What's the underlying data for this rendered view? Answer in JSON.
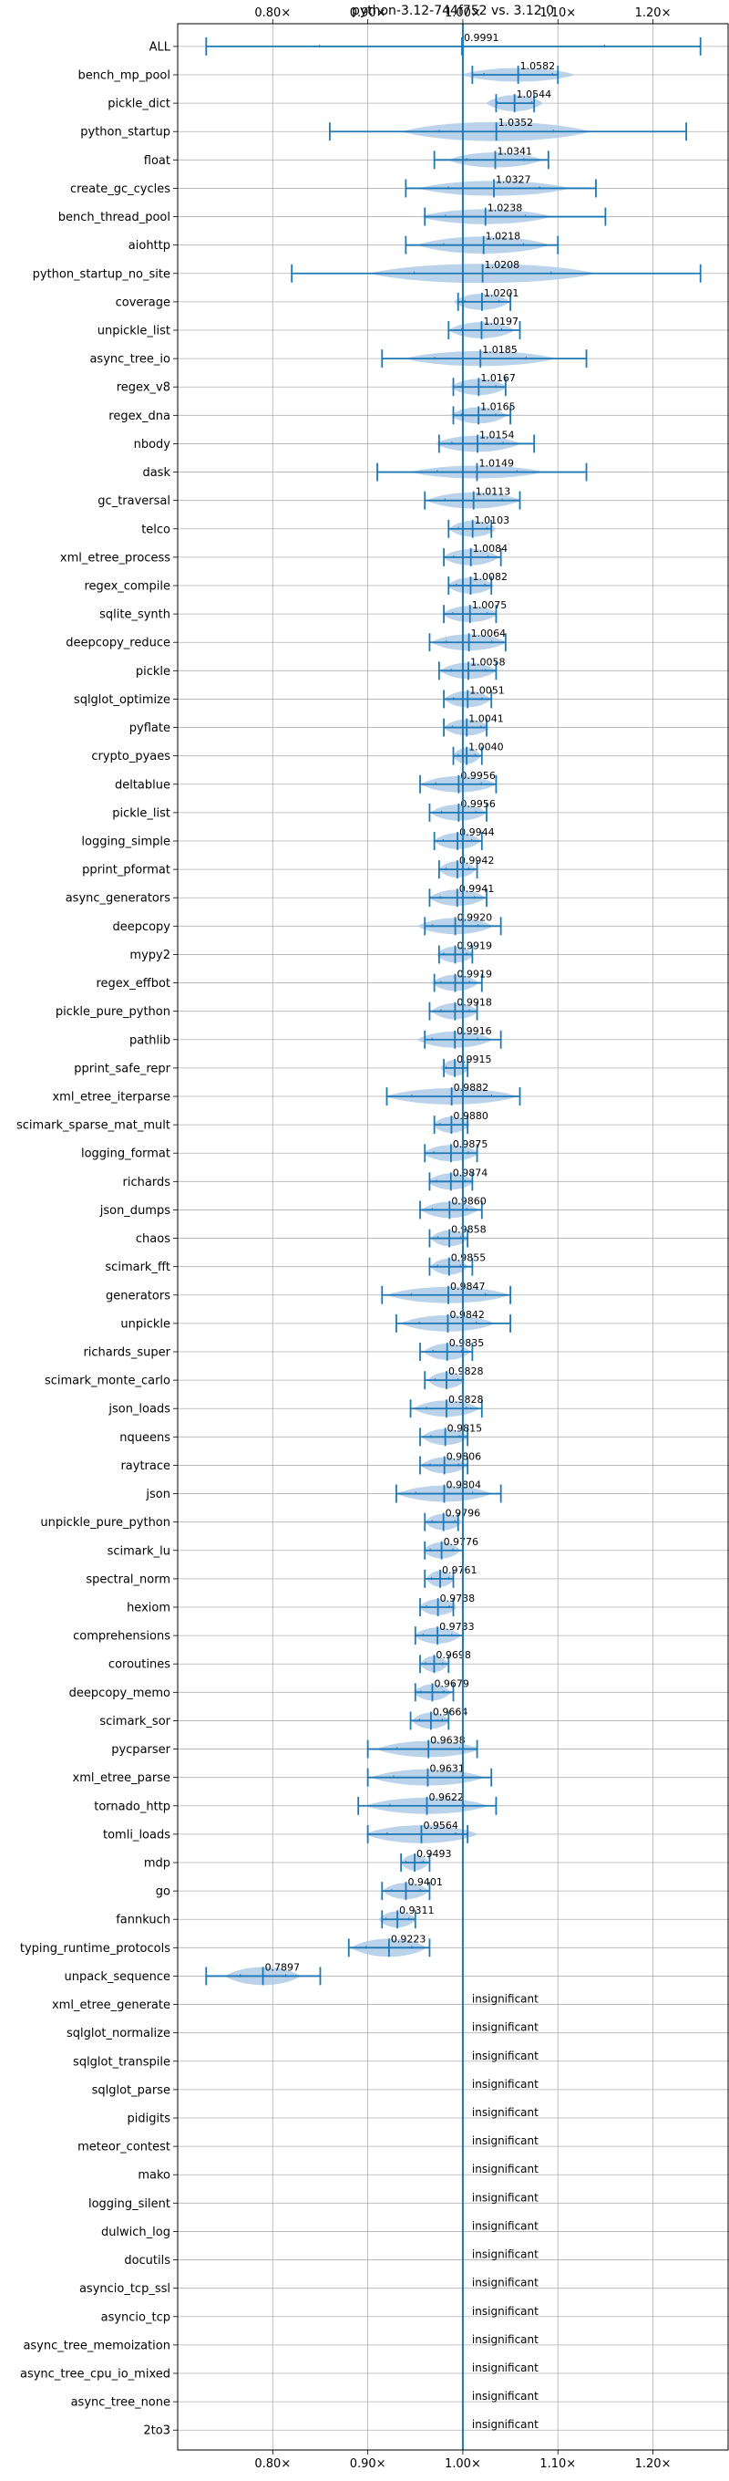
{
  "chart_data": {
    "type": "violin",
    "title": "python-3.12-744f752 vs. 3.12.0",
    "xlim": [
      0.7,
      1.28
    ],
    "xticks": [
      {
        "value": 0.8,
        "label": "0.80×"
      },
      {
        "value": 0.9,
        "label": "0.90×"
      },
      {
        "value": 1.0,
        "label": "1.00×"
      },
      {
        "value": 1.1,
        "label": "1.10×"
      },
      {
        "value": 1.2,
        "label": "1.20×"
      }
    ],
    "grid": true,
    "reference_line": 1.0,
    "colors": {
      "violin": "#aecbe6",
      "line": "#1f77b4",
      "grid": "#b0b0b0"
    },
    "insignificant_label": "insignificant",
    "benchmarks": [
      {
        "name": "ALL",
        "label": "0.9991",
        "mean": 0.9991,
        "min": 0.73,
        "max": 1.25,
        "half_width": 0.04,
        "width": 0.25
      },
      {
        "name": "bench_mp_pool",
        "label": "1.0582",
        "mean": 1.0582,
        "min": 1.01,
        "max": 1.1,
        "half_width": 0.32,
        "width": 0.06
      },
      {
        "name": "pickle_dict",
        "label": "1.0544",
        "mean": 1.0544,
        "min": 1.035,
        "max": 1.075,
        "half_width": 0.38,
        "width": 0.03
      },
      {
        "name": "python_startup",
        "label": "1.0352",
        "mean": 1.0352,
        "min": 0.86,
        "max": 1.235,
        "half_width": 0.45,
        "width": 0.1
      },
      {
        "name": "float",
        "label": "1.0341",
        "mean": 1.0341,
        "min": 0.97,
        "max": 1.09,
        "half_width": 0.35,
        "width": 0.05
      },
      {
        "name": "create_gc_cycles",
        "label": "1.0327",
        "mean": 1.0327,
        "min": 0.94,
        "max": 1.14,
        "half_width": 0.35,
        "width": 0.08
      },
      {
        "name": "bench_thread_pool",
        "label": "1.0238",
        "mean": 1.0238,
        "min": 0.96,
        "max": 1.15,
        "half_width": 0.35,
        "width": 0.07
      },
      {
        "name": "aiohttp",
        "label": "1.0218",
        "mean": 1.0218,
        "min": 0.94,
        "max": 1.1,
        "half_width": 0.4,
        "width": 0.07
      },
      {
        "name": "python_startup_no_site",
        "label": "1.0208",
        "mean": 1.0208,
        "min": 0.82,
        "max": 1.25,
        "half_width": 0.45,
        "width": 0.12
      },
      {
        "name": "coverage",
        "label": "1.0201",
        "mean": 1.0201,
        "min": 0.995,
        "max": 1.05,
        "half_width": 0.38,
        "width": 0.03
      },
      {
        "name": "unpickle_list",
        "label": "1.0197",
        "mean": 1.0197,
        "min": 0.985,
        "max": 1.06,
        "half_width": 0.38,
        "width": 0.035
      },
      {
        "name": "async_tree_io",
        "label": "1.0185",
        "mean": 1.0185,
        "min": 0.915,
        "max": 1.13,
        "half_width": 0.35,
        "width": 0.08
      },
      {
        "name": "regex_v8",
        "label": "1.0167",
        "mean": 1.0167,
        "min": 0.99,
        "max": 1.045,
        "half_width": 0.38,
        "width": 0.03
      },
      {
        "name": "regex_dna",
        "label": "1.0165",
        "mean": 1.0165,
        "min": 0.99,
        "max": 1.05,
        "half_width": 0.38,
        "width": 0.03
      },
      {
        "name": "nbody",
        "label": "1.0154",
        "mean": 1.0154,
        "min": 0.975,
        "max": 1.075,
        "half_width": 0.38,
        "width": 0.045
      },
      {
        "name": "dask",
        "label": "1.0149",
        "mean": 1.0149,
        "min": 0.91,
        "max": 1.13,
        "half_width": 0.3,
        "width": 0.07
      },
      {
        "name": "gc_traversal",
        "label": "1.0113",
        "mean": 1.0113,
        "min": 0.96,
        "max": 1.06,
        "half_width": 0.38,
        "width": 0.05
      },
      {
        "name": "telco",
        "label": "1.0103",
        "mean": 1.0103,
        "min": 0.985,
        "max": 1.03,
        "half_width": 0.38,
        "width": 0.025
      },
      {
        "name": "xml_etree_process",
        "label": "1.0084",
        "mean": 1.0084,
        "min": 0.98,
        "max": 1.04,
        "half_width": 0.38,
        "width": 0.03
      },
      {
        "name": "regex_compile",
        "label": "1.0082",
        "mean": 1.0082,
        "min": 0.985,
        "max": 1.03,
        "half_width": 0.38,
        "width": 0.025
      },
      {
        "name": "sqlite_synth",
        "label": "1.0075",
        "mean": 1.0075,
        "min": 0.98,
        "max": 1.035,
        "half_width": 0.38,
        "width": 0.03
      },
      {
        "name": "deepcopy_reduce",
        "label": "1.0064",
        "mean": 1.0064,
        "min": 0.965,
        "max": 1.045,
        "half_width": 0.38,
        "width": 0.04
      },
      {
        "name": "pickle",
        "label": "1.0058",
        "mean": 1.0058,
        "min": 0.975,
        "max": 1.035,
        "half_width": 0.38,
        "width": 0.03
      },
      {
        "name": "sqlglot_optimize",
        "label": "1.0051",
        "mean": 1.0051,
        "min": 0.98,
        "max": 1.03,
        "half_width": 0.38,
        "width": 0.025
      },
      {
        "name": "pyflate",
        "label": "1.0041",
        "mean": 1.0041,
        "min": 0.98,
        "max": 1.025,
        "half_width": 0.38,
        "width": 0.025
      },
      {
        "name": "crypto_pyaes",
        "label": "1.0040",
        "mean": 1.004,
        "min": 0.99,
        "max": 1.02,
        "half_width": 0.38,
        "width": 0.015
      },
      {
        "name": "deltablue",
        "label": "0.9956",
        "mean": 0.9956,
        "min": 0.955,
        "max": 1.035,
        "half_width": 0.38,
        "width": 0.04
      },
      {
        "name": "pickle_list",
        "label": "0.9956",
        "mean": 0.9956,
        "min": 0.965,
        "max": 1.025,
        "half_width": 0.38,
        "width": 0.03
      },
      {
        "name": "logging_simple",
        "label": "0.9944",
        "mean": 0.9944,
        "min": 0.97,
        "max": 1.02,
        "half_width": 0.38,
        "width": 0.025
      },
      {
        "name": "pprint_pformat",
        "label": "0.9942",
        "mean": 0.9942,
        "min": 0.975,
        "max": 1.015,
        "half_width": 0.38,
        "width": 0.02
      },
      {
        "name": "async_generators",
        "label": "0.9941",
        "mean": 0.9941,
        "min": 0.965,
        "max": 1.025,
        "half_width": 0.38,
        "width": 0.03
      },
      {
        "name": "deepcopy",
        "label": "0.9920",
        "mean": 0.992,
        "min": 0.96,
        "max": 1.04,
        "half_width": 0.38,
        "width": 0.04
      },
      {
        "name": "mypy2",
        "label": "0.9919",
        "mean": 0.9919,
        "min": 0.975,
        "max": 1.01,
        "half_width": 0.38,
        "width": 0.02
      },
      {
        "name": "regex_effbot",
        "label": "0.9919",
        "mean": 0.9919,
        "min": 0.97,
        "max": 1.02,
        "half_width": 0.38,
        "width": 0.025
      },
      {
        "name": "pickle_pure_python",
        "label": "0.9918",
        "mean": 0.9918,
        "min": 0.965,
        "max": 1.015,
        "half_width": 0.38,
        "width": 0.025
      },
      {
        "name": "pathlib",
        "label": "0.9916",
        "mean": 0.9916,
        "min": 0.96,
        "max": 1.04,
        "half_width": 0.38,
        "width": 0.04
      },
      {
        "name": "pprint_safe_repr",
        "label": "0.9915",
        "mean": 0.9915,
        "min": 0.98,
        "max": 1.005,
        "half_width": 0.38,
        "width": 0.015
      },
      {
        "name": "xml_etree_iterparse",
        "label": "0.9882",
        "mean": 0.9882,
        "min": 0.92,
        "max": 1.06,
        "half_width": 0.38,
        "width": 0.07
      },
      {
        "name": "scimark_sparse_mat_mult",
        "label": "0.9880",
        "mean": 0.988,
        "min": 0.97,
        "max": 1.005,
        "half_width": 0.38,
        "width": 0.02
      },
      {
        "name": "logging_format",
        "label": "0.9875",
        "mean": 0.9875,
        "min": 0.96,
        "max": 1.015,
        "half_width": 0.38,
        "width": 0.03
      },
      {
        "name": "richards",
        "label": "0.9874",
        "mean": 0.9874,
        "min": 0.965,
        "max": 1.01,
        "half_width": 0.38,
        "width": 0.025
      },
      {
        "name": "json_dumps",
        "label": "0.9860",
        "mean": 0.986,
        "min": 0.955,
        "max": 1.02,
        "half_width": 0.38,
        "width": 0.03
      },
      {
        "name": "chaos",
        "label": "0.9858",
        "mean": 0.9858,
        "min": 0.965,
        "max": 1.005,
        "half_width": 0.38,
        "width": 0.02
      },
      {
        "name": "scimark_fft",
        "label": "0.9855",
        "mean": 0.9855,
        "min": 0.965,
        "max": 1.01,
        "half_width": 0.38,
        "width": 0.02
      },
      {
        "name": "generators",
        "label": "0.9847",
        "mean": 0.9847,
        "min": 0.915,
        "max": 1.05,
        "half_width": 0.38,
        "width": 0.065
      },
      {
        "name": "unpickle",
        "label": "0.9842",
        "mean": 0.9842,
        "min": 0.93,
        "max": 1.05,
        "half_width": 0.38,
        "width": 0.05
      },
      {
        "name": "richards_super",
        "label": "0.9835",
        "mean": 0.9835,
        "min": 0.955,
        "max": 1.01,
        "half_width": 0.38,
        "width": 0.025
      },
      {
        "name": "scimark_monte_carlo",
        "label": "0.9828",
        "mean": 0.9828,
        "min": 0.96,
        "max": 1.0,
        "half_width": 0.38,
        "width": 0.02
      },
      {
        "name": "json_loads",
        "label": "0.9828",
        "mean": 0.9828,
        "min": 0.945,
        "max": 1.02,
        "half_width": 0.38,
        "width": 0.035
      },
      {
        "name": "nqueens",
        "label": "0.9815",
        "mean": 0.9815,
        "min": 0.955,
        "max": 1.005,
        "half_width": 0.38,
        "width": 0.025
      },
      {
        "name": "raytrace",
        "label": "0.9806",
        "mean": 0.9806,
        "min": 0.955,
        "max": 1.005,
        "half_width": 0.38,
        "width": 0.025
      },
      {
        "name": "json",
        "label": "0.9804",
        "mean": 0.9804,
        "min": 0.93,
        "max": 1.04,
        "half_width": 0.38,
        "width": 0.05
      },
      {
        "name": "unpickle_pure_python",
        "label": "0.9796",
        "mean": 0.9796,
        "min": 0.96,
        "max": 0.995,
        "half_width": 0.38,
        "width": 0.02
      },
      {
        "name": "scimark_lu",
        "label": "0.9776",
        "mean": 0.9776,
        "min": 0.96,
        "max": 1.0,
        "half_width": 0.38,
        "width": 0.02
      },
      {
        "name": "spectral_norm",
        "label": "0.9761",
        "mean": 0.9761,
        "min": 0.96,
        "max": 0.99,
        "half_width": 0.38,
        "width": 0.015
      },
      {
        "name": "hexiom",
        "label": "0.9738",
        "mean": 0.9738,
        "min": 0.955,
        "max": 0.99,
        "half_width": 0.38,
        "width": 0.02
      },
      {
        "name": "comprehensions",
        "label": "0.9733",
        "mean": 0.9733,
        "min": 0.95,
        "max": 1.0,
        "half_width": 0.38,
        "width": 0.025
      },
      {
        "name": "coroutines",
        "label": "0.9698",
        "mean": 0.9698,
        "min": 0.955,
        "max": 0.985,
        "half_width": 0.38,
        "width": 0.015
      },
      {
        "name": "deepcopy_memo",
        "label": "0.9679",
        "mean": 0.9679,
        "min": 0.95,
        "max": 0.99,
        "half_width": 0.38,
        "width": 0.02
      },
      {
        "name": "scimark_sor",
        "label": "0.9664",
        "mean": 0.9664,
        "min": 0.945,
        "max": 0.985,
        "half_width": 0.38,
        "width": 0.02
      },
      {
        "name": "pycparser",
        "label": "0.9638",
        "mean": 0.9638,
        "min": 0.9,
        "max": 1.015,
        "half_width": 0.38,
        "width": 0.055
      },
      {
        "name": "xml_etree_parse",
        "label": "0.9631",
        "mean": 0.9631,
        "min": 0.9,
        "max": 1.03,
        "half_width": 0.38,
        "width": 0.06
      },
      {
        "name": "tornado_http",
        "label": "0.9622",
        "mean": 0.9622,
        "min": 0.89,
        "max": 1.035,
        "half_width": 0.38,
        "width": 0.065
      },
      {
        "name": "tomli_loads",
        "label": "0.9564",
        "mean": 0.9564,
        "min": 0.9,
        "max": 1.005,
        "half_width": 0.42,
        "width": 0.06
      },
      {
        "name": "mdp",
        "label": "0.9493",
        "mean": 0.9493,
        "min": 0.935,
        "max": 0.965,
        "half_width": 0.38,
        "width": 0.015
      },
      {
        "name": "go",
        "label": "0.9401",
        "mean": 0.9401,
        "min": 0.915,
        "max": 0.965,
        "half_width": 0.38,
        "width": 0.025
      },
      {
        "name": "fannkuch",
        "label": "0.9311",
        "mean": 0.9311,
        "min": 0.915,
        "max": 0.95,
        "half_width": 0.38,
        "width": 0.02
      },
      {
        "name": "typing_runtime_protocols",
        "label": "0.9223",
        "mean": 0.9223,
        "min": 0.88,
        "max": 0.965,
        "half_width": 0.42,
        "width": 0.04
      },
      {
        "name": "unpack_sequence",
        "label": "0.7897",
        "mean": 0.7897,
        "min": 0.73,
        "max": 0.85,
        "half_width": 0.42,
        "width": 0.04
      },
      {
        "name": "xml_etree_generate",
        "label": "insignificant"
      },
      {
        "name": "sqlglot_normalize",
        "label": "insignificant"
      },
      {
        "name": "sqlglot_transpile",
        "label": "insignificant"
      },
      {
        "name": "sqlglot_parse",
        "label": "insignificant"
      },
      {
        "name": "pidigits",
        "label": "insignificant"
      },
      {
        "name": "meteor_contest",
        "label": "insignificant"
      },
      {
        "name": "mako",
        "label": "insignificant"
      },
      {
        "name": "logging_silent",
        "label": "insignificant"
      },
      {
        "name": "dulwich_log",
        "label": "insignificant"
      },
      {
        "name": "docutils",
        "label": "insignificant"
      },
      {
        "name": "asyncio_tcp_ssl",
        "label": "insignificant"
      },
      {
        "name": "asyncio_tcp",
        "label": "insignificant"
      },
      {
        "name": "async_tree_memoization",
        "label": "insignificant"
      },
      {
        "name": "async_tree_cpu_io_mixed",
        "label": "insignificant"
      },
      {
        "name": "async_tree_none",
        "label": "insignificant"
      },
      {
        "name": "2to3",
        "label": "insignificant"
      }
    ]
  }
}
